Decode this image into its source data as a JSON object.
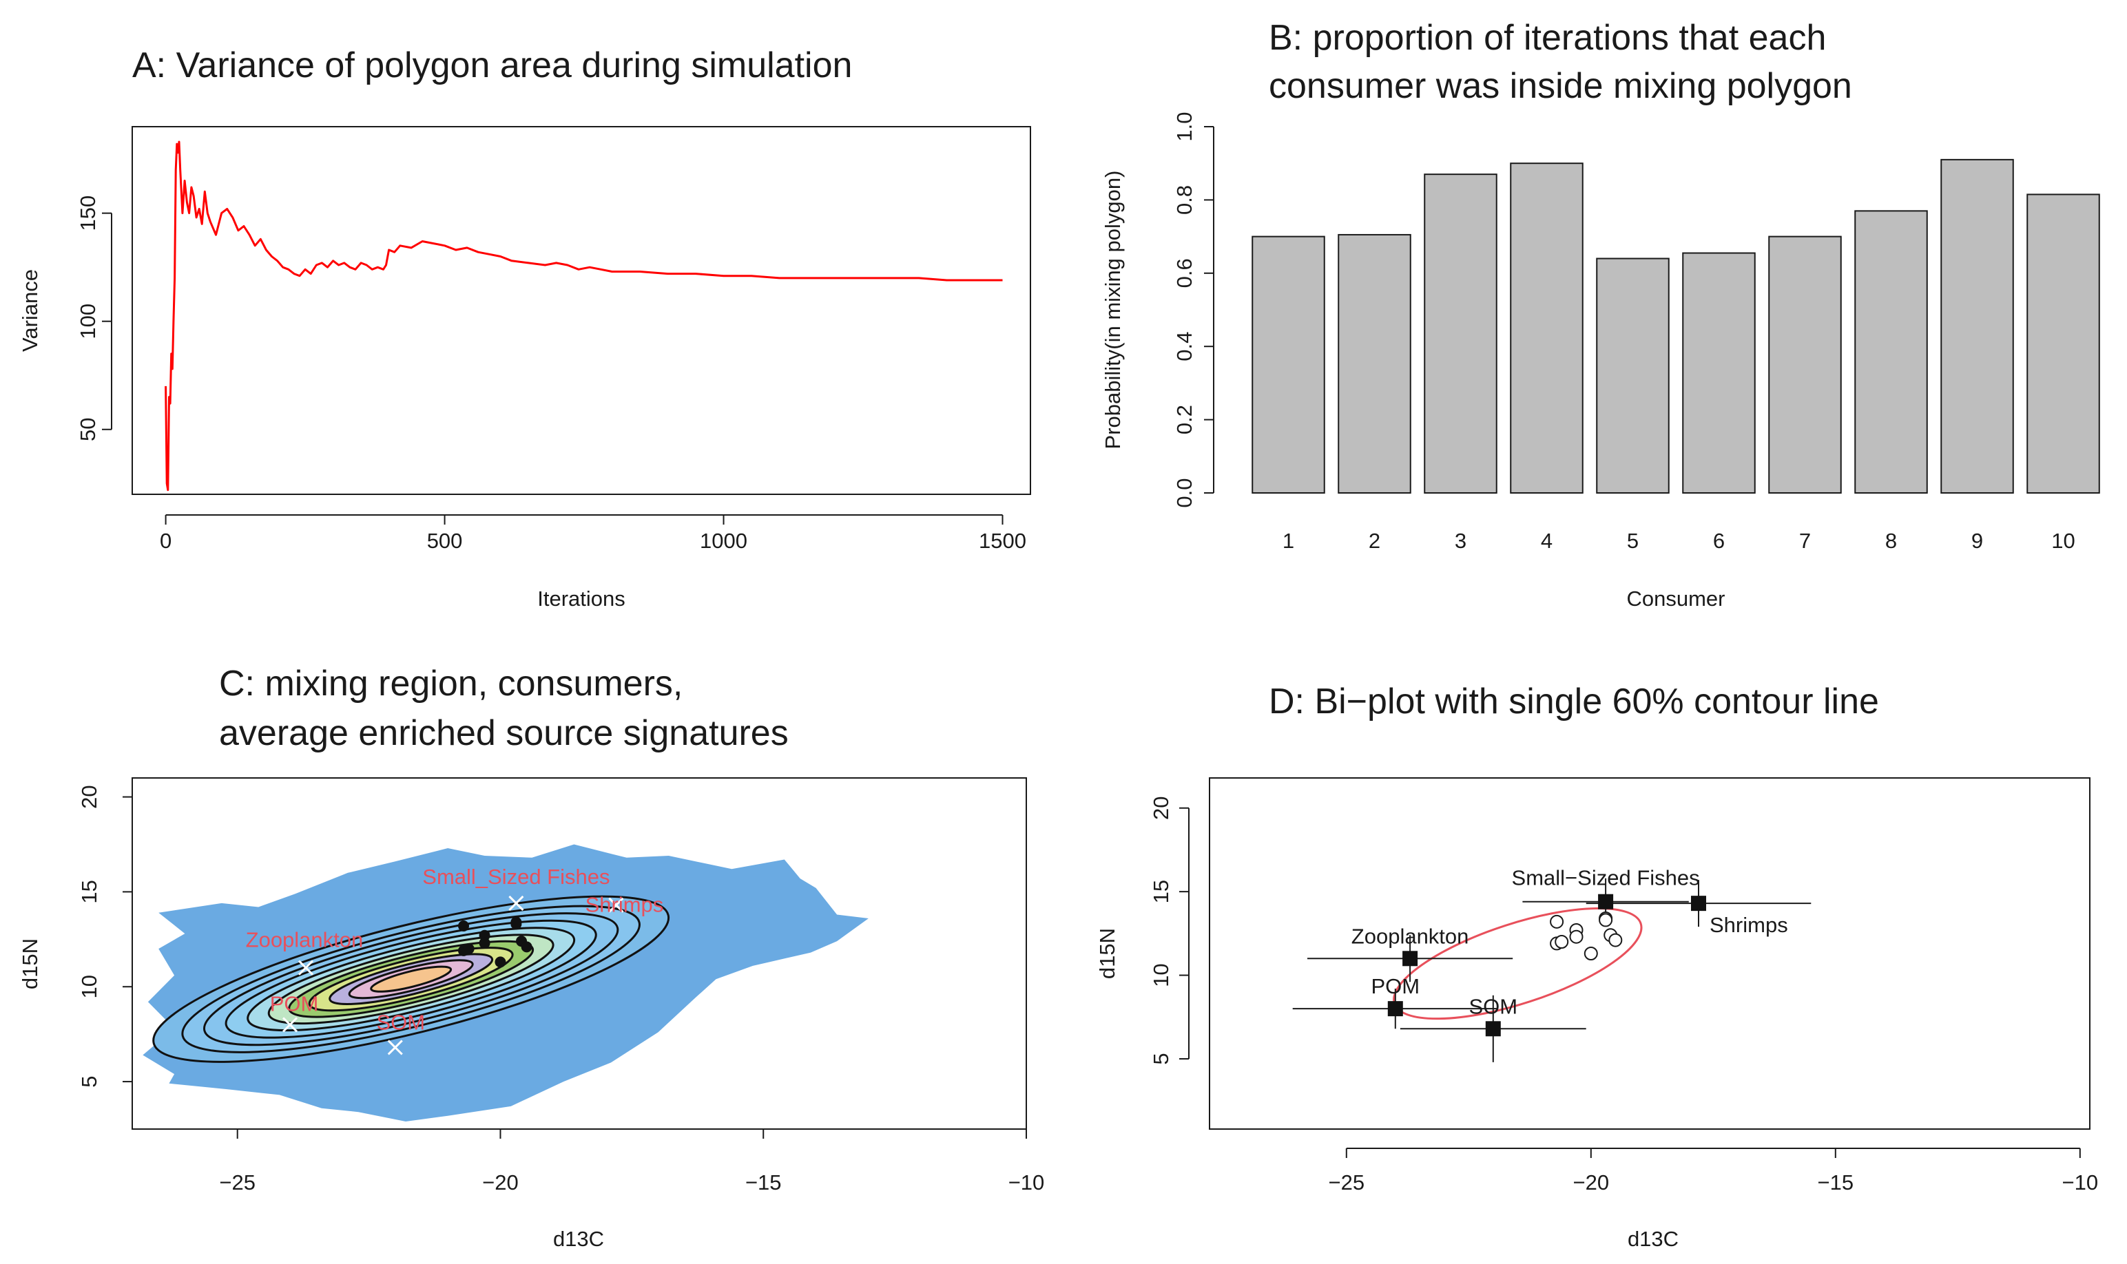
{
  "chart_data": [
    {
      "id": "A",
      "type": "line",
      "title": "A: Variance of polygon area during simulation",
      "xlabel": "Iterations",
      "ylabel": "Variance",
      "xlim": [
        -60,
        1550
      ],
      "ylim": [
        20,
        190
      ],
      "xticks": [
        0,
        500,
        1000,
        1500
      ],
      "yticks": [
        50,
        100,
        150
      ],
      "grid": false,
      "legend": "none",
      "series": [
        {
          "name": "Variance",
          "color": "#ff0000",
          "x": [
            0,
            2,
            4,
            6,
            8,
            10,
            12,
            14,
            16,
            18,
            20,
            22,
            24,
            26,
            28,
            30,
            34,
            38,
            42,
            46,
            50,
            55,
            60,
            65,
            70,
            75,
            80,
            90,
            100,
            110,
            120,
            130,
            140,
            150,
            160,
            170,
            180,
            190,
            200,
            210,
            220,
            230,
            240,
            250,
            260,
            270,
            280,
            290,
            300,
            310,
            320,
            330,
            340,
            350,
            360,
            370,
            380,
            390,
            395,
            400,
            410,
            420,
            440,
            460,
            480,
            500,
            520,
            540,
            560,
            580,
            600,
            620,
            650,
            680,
            700,
            720,
            740,
            760,
            780,
            800,
            850,
            900,
            950,
            1000,
            1050,
            1100,
            1150,
            1200,
            1250,
            1300,
            1350,
            1400,
            1450,
            1500
          ],
          "y": [
            70,
            25,
            22,
            65,
            62,
            85,
            78,
            100,
            120,
            170,
            182,
            178,
            183,
            170,
            160,
            150,
            165,
            155,
            150,
            162,
            158,
            148,
            152,
            145,
            160,
            150,
            146,
            140,
            150,
            152,
            148,
            142,
            144,
            140,
            135,
            138,
            133,
            130,
            128,
            125,
            124,
            122,
            121,
            124,
            122,
            126,
            127,
            125,
            128,
            126,
            127,
            125,
            124,
            127,
            126,
            124,
            125,
            124,
            126,
            133,
            132,
            135,
            134,
            137,
            136,
            135,
            133,
            134,
            132,
            131,
            130,
            128,
            127,
            126,
            127,
            126,
            124,
            125,
            124,
            123,
            123,
            122,
            122,
            121,
            121,
            120,
            120,
            120,
            120,
            120,
            120,
            119,
            119,
            119
          ]
        }
      ]
    },
    {
      "id": "B",
      "type": "bar",
      "title": [
        "B: proportion of iterations that each",
        "consumer was inside mixing polygon"
      ],
      "xlabel": "Consumer",
      "ylabel": "Probability(in mixing polygon)",
      "ylim": [
        0,
        1
      ],
      "yticks": [
        "0.0",
        "0.2",
        "0.4",
        "0.6",
        "0.8",
        "1.0"
      ],
      "categories": [
        "1",
        "2",
        "3",
        "4",
        "5",
        "6",
        "7",
        "8",
        "9",
        "10"
      ],
      "values": [
        0.7,
        0.705,
        0.87,
        0.9,
        0.64,
        0.655,
        0.7,
        0.77,
        0.91,
        0.815
      ],
      "bar_color": "#bebebe",
      "grid": false,
      "legend": "none"
    },
    {
      "id": "C",
      "type": "heatmap",
      "title": [
        "C: mixing region, consumers,",
        "average enriched source signatures"
      ],
      "xlabel": "d13C",
      "ylabel": "d15N",
      "xlim": [
        -27,
        -10
      ],
      "ylim": [
        2.5,
        21
      ],
      "xticks": [
        "−25",
        "−20",
        "−15",
        "−10"
      ],
      "yticks": [
        "5",
        "10",
        "15",
        "20"
      ],
      "density_center": [
        -21.7,
        10.4
      ],
      "contour_count": 8,
      "sources": [
        {
          "name": "Small_Sized Fishes",
          "x": -19.7,
          "y": 14.4
        },
        {
          "name": "Shrimps",
          "x": -17.8,
          "y": 14.3
        },
        {
          "name": "Zooplankton",
          "x": -23.7,
          "y": 11.0
        },
        {
          "name": "POM",
          "x": -24.0,
          "y": 8.0
        },
        {
          "name": "SOM",
          "x": -22.0,
          "y": 6.8
        }
      ],
      "consumers": [
        {
          "x": -20.7,
          "y": 13.2
        },
        {
          "x": -20.3,
          "y": 12.7
        },
        {
          "x": -20.3,
          "y": 12.3
        },
        {
          "x": -20.7,
          "y": 11.9
        },
        {
          "x": -20.6,
          "y": 12.0
        },
        {
          "x": -19.7,
          "y": 13.4
        },
        {
          "x": -19.7,
          "y": 13.3
        },
        {
          "x": -19.6,
          "y": 12.4
        },
        {
          "x": -19.5,
          "y": 12.1
        },
        {
          "x": -20.0,
          "y": 11.3
        }
      ],
      "grid": false,
      "legend": "none"
    },
    {
      "id": "D",
      "type": "scatter",
      "title": "D: Bi−plot with single 60% contour line",
      "xlabel": "d13C",
      "ylabel": "d15N",
      "xlim": [
        -27.8,
        -9.8
      ],
      "ylim": [
        0.8,
        21.8
      ],
      "xticks": [
        "−25",
        "−20",
        "−15",
        "−10"
      ],
      "yticks": [
        "5",
        "10",
        "15",
        "20"
      ],
      "sources": [
        {
          "name": "Small−Sized Fishes",
          "x": -19.7,
          "y": 14.4,
          "xerr": 1.7,
          "yerr": 1.4
        },
        {
          "name": "Shrimps",
          "x": -17.8,
          "y": 14.3,
          "xerr": 2.3,
          "yerr": 1.4
        },
        {
          "name": "Zooplankton",
          "x": -23.7,
          "y": 11.0,
          "xerr": 2.1,
          "yerr": 1.4
        },
        {
          "name": "POM",
          "x": -24.0,
          "y": 8.0,
          "xerr": 2.1,
          "yerr": 1.2
        },
        {
          "name": "SOM",
          "x": -22.0,
          "y": 6.8,
          "xerr": 1.9,
          "yerr": 2.0
        }
      ],
      "consumers": [
        {
          "x": -20.7,
          "y": 13.2
        },
        {
          "x": -20.3,
          "y": 12.7
        },
        {
          "x": -20.3,
          "y": 12.3
        },
        {
          "x": -20.7,
          "y": 11.9
        },
        {
          "x": -20.6,
          "y": 12.0
        },
        {
          "x": -19.7,
          "y": 13.4
        },
        {
          "x": -19.7,
          "y": 13.3
        },
        {
          "x": -19.6,
          "y": 12.4
        },
        {
          "x": -19.5,
          "y": 12.1
        },
        {
          "x": -20.0,
          "y": 11.3
        }
      ],
      "contour": {
        "level": "60%",
        "color": "#e8505b",
        "center": [
          -21.5,
          10.7
        ]
      },
      "grid": false,
      "legend": "none"
    }
  ]
}
